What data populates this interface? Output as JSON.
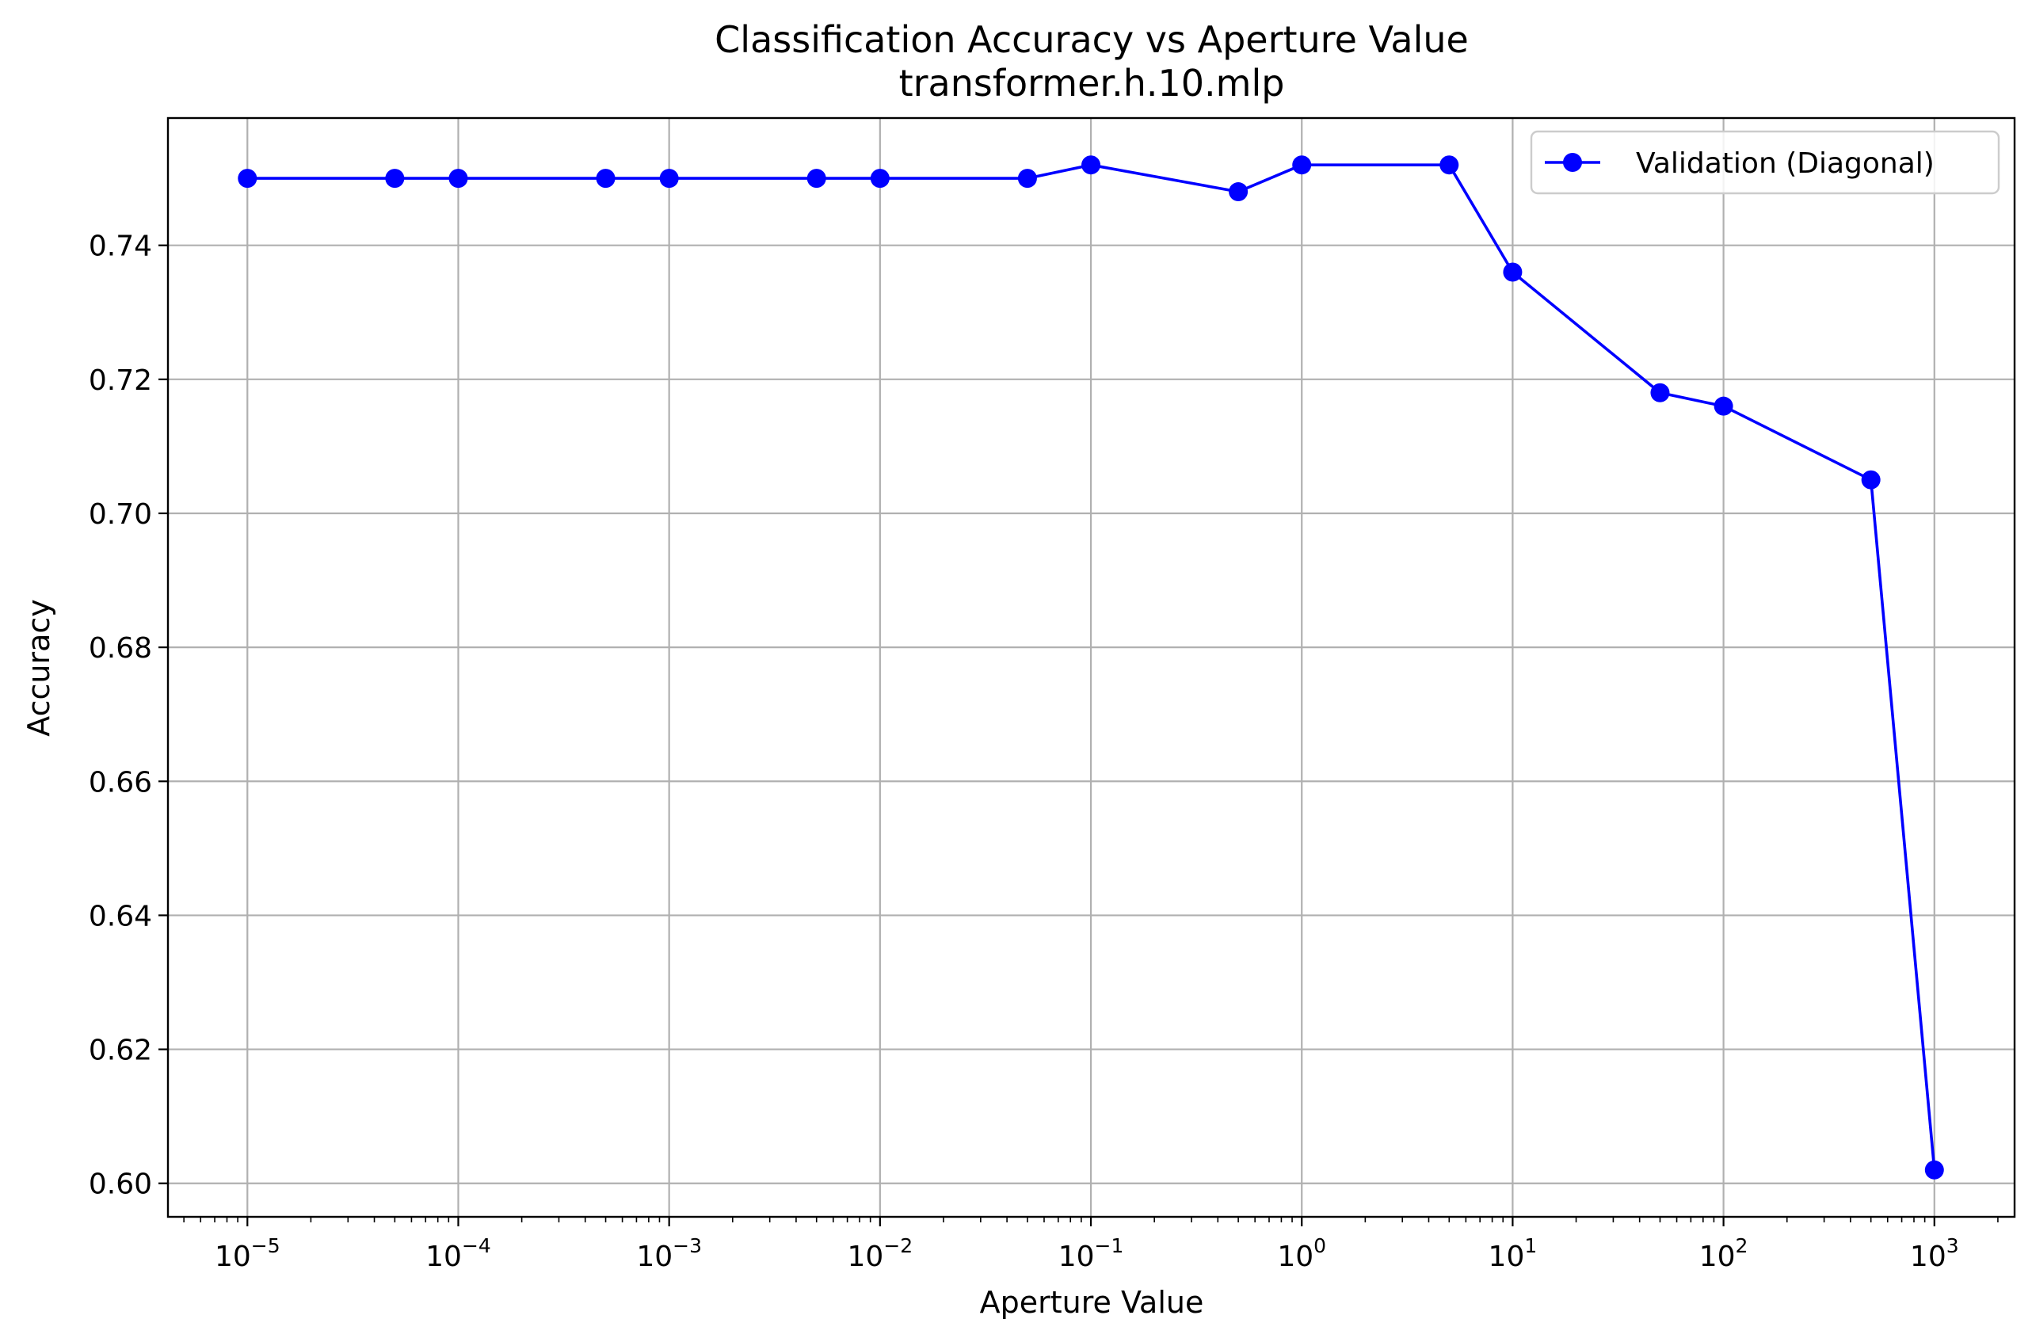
{
  "chart_data": {
    "type": "line",
    "title": "Classification Accuracy vs Aperture Value",
    "subtitle": "transformer.h.10.mlp",
    "xlabel": "Aperture Value",
    "ylabel": "Accuracy",
    "xscale": "log",
    "xlim": [
      4.2e-06,
      2400
    ],
    "ylim": [
      0.595,
      0.759
    ],
    "grid": true,
    "legend_position": "top-right",
    "colors": {
      "series": "#0000ff",
      "grid": "#b0b0b0",
      "frame": "#000000"
    },
    "x_ticks": [
      {
        "value": 1e-05,
        "base": "10",
        "exp": "−5"
      },
      {
        "value": 0.0001,
        "base": "10",
        "exp": "−4"
      },
      {
        "value": 0.001,
        "base": "10",
        "exp": "−3"
      },
      {
        "value": 0.01,
        "base": "10",
        "exp": "−2"
      },
      {
        "value": 0.1,
        "base": "10",
        "exp": "−1"
      },
      {
        "value": 1,
        "base": "10",
        "exp": "0"
      },
      {
        "value": 10,
        "base": "10",
        "exp": "1"
      },
      {
        "value": 100,
        "base": "10",
        "exp": "2"
      },
      {
        "value": 1000,
        "base": "10",
        "exp": "3"
      }
    ],
    "y_ticks": [
      {
        "value": 0.6,
        "label": "0.60"
      },
      {
        "value": 0.62,
        "label": "0.62"
      },
      {
        "value": 0.64,
        "label": "0.64"
      },
      {
        "value": 0.66,
        "label": "0.66"
      },
      {
        "value": 0.68,
        "label": "0.68"
      },
      {
        "value": 0.7,
        "label": "0.70"
      },
      {
        "value": 0.72,
        "label": "0.72"
      },
      {
        "value": 0.74,
        "label": "0.74"
      }
    ],
    "series": [
      {
        "name": "Validation (Diagonal)",
        "color": "#0000ff",
        "marker": "circle",
        "x": [
          1e-05,
          5e-05,
          0.0001,
          0.0005,
          0.001,
          0.005,
          0.01,
          0.05,
          0.1,
          0.5,
          1,
          5,
          10,
          50,
          100,
          500,
          1000
        ],
        "y": [
          0.75,
          0.75,
          0.75,
          0.75,
          0.75,
          0.75,
          0.75,
          0.75,
          0.752,
          0.748,
          0.752,
          0.752,
          0.736,
          0.718,
          0.716,
          0.705,
          0.602
        ]
      }
    ]
  }
}
